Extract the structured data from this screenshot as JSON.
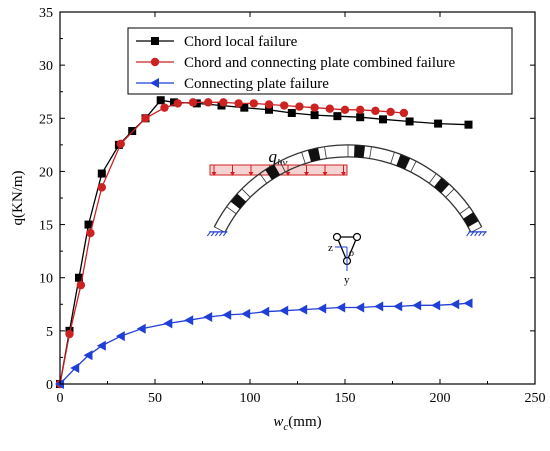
{
  "chart_data": {
    "type": "line",
    "title": "",
    "xlabel": "w",
    "xlabel_sub": "c",
    "xlabel_unit": "(mm)",
    "ylabel": "q(KN/m)",
    "xlim": [
      0,
      250
    ],
    "ylim": [
      0,
      35
    ],
    "xticks": [
      0,
      50,
      100,
      150,
      200,
      250
    ],
    "yticks": [
      0,
      5,
      10,
      15,
      20,
      25,
      30,
      35
    ],
    "grid": false,
    "legend_position": "top-right",
    "series": [
      {
        "name": "Chord local failure",
        "color": "#000000",
        "marker": "square",
        "x": [
          0,
          5,
          10,
          15,
          22,
          31,
          38,
          45,
          53,
          60,
          72,
          85,
          97,
          110,
          122,
          134,
          146,
          158,
          170,
          184,
          199,
          215
        ],
        "y": [
          0,
          5,
          10,
          15,
          19.8,
          22.5,
          23.8,
          25.0,
          26.7,
          26.5,
          26.4,
          26.2,
          26.0,
          25.8,
          25.5,
          25.3,
          25.2,
          25.1,
          24.9,
          24.7,
          24.5,
          24.4
        ]
      },
      {
        "name": "Chord and connecting plate combined failure",
        "color": "#cc2222",
        "marker": "circle",
        "x": [
          0,
          5,
          11,
          16,
          22,
          32,
          45,
          55,
          62,
          70,
          78,
          86,
          94,
          102,
          110,
          118,
          126,
          134,
          142,
          150,
          158,
          166,
          174,
          181
        ],
        "y": [
          0,
          4.7,
          9.3,
          14.2,
          18.5,
          22.6,
          25.0,
          26.0,
          26.4,
          26.5,
          26.5,
          26.5,
          26.4,
          26.4,
          26.3,
          26.2,
          26.1,
          26.0,
          25.9,
          25.8,
          25.8,
          25.7,
          25.6,
          25.5
        ]
      },
      {
        "name": "Connecting plate failure",
        "color": "#1f3fd6",
        "marker": "triangle-left",
        "x": [
          0,
          8,
          15,
          22,
          32,
          43,
          57,
          68,
          78,
          88,
          98,
          108,
          118,
          128,
          138,
          148,
          158,
          168,
          178,
          188,
          198,
          208,
          215
        ],
        "y": [
          0,
          1.5,
          2.7,
          3.6,
          4.5,
          5.2,
          5.7,
          6.0,
          6.3,
          6.5,
          6.6,
          6.8,
          6.9,
          7.0,
          7.1,
          7.2,
          7.2,
          7.3,
          7.3,
          7.4,
          7.4,
          7.5,
          7.6
        ]
      }
    ],
    "annotation": {
      "load_label": "q",
      "load_label_sub": "hv",
      "section_labels": [
        "z",
        "o",
        "y"
      ]
    }
  }
}
